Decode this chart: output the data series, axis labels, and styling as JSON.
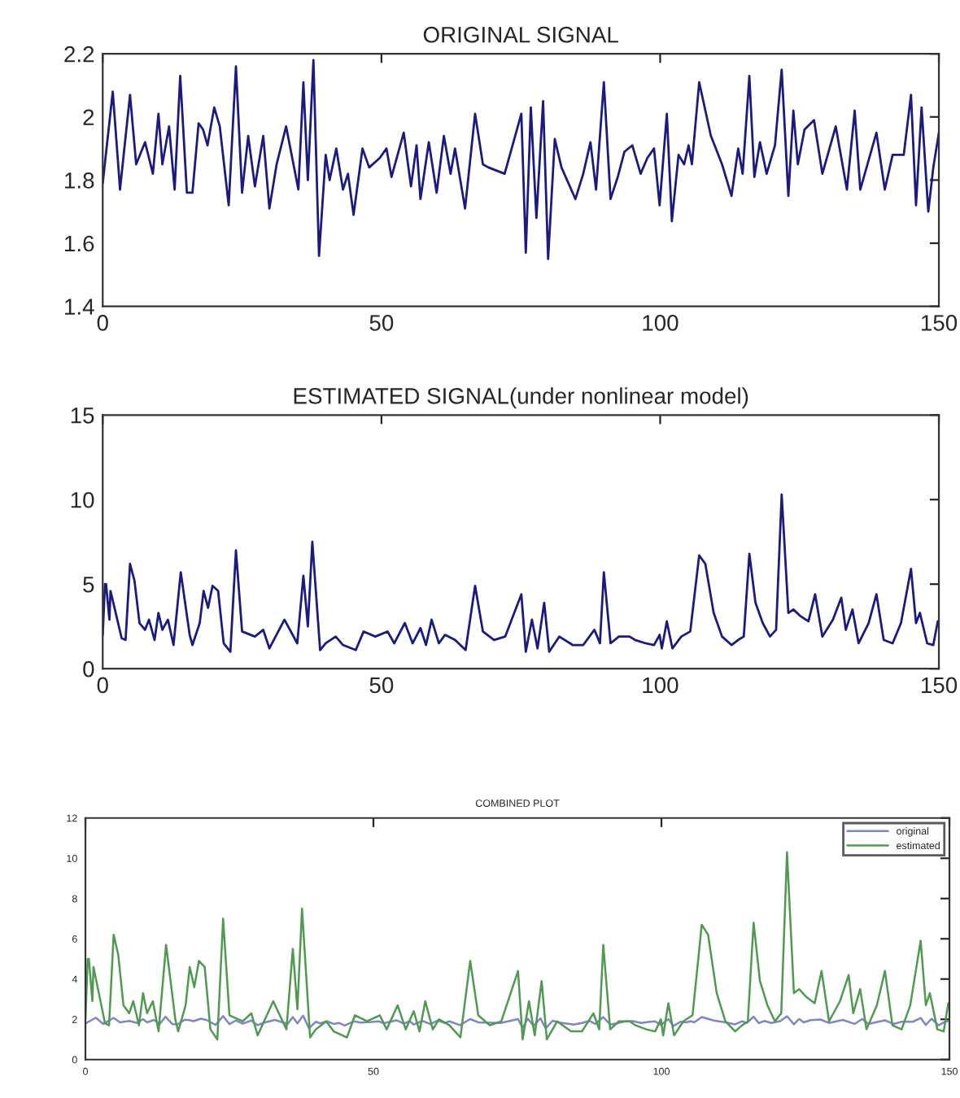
{
  "chart_data": [
    {
      "type": "line",
      "title": "ORIGINAL SIGNAL",
      "xlim": [
        0,
        150
      ],
      "xticks": [
        0,
        50,
        100,
        150
      ],
      "ylim": [
        1.4,
        2.2
      ],
      "yticks": [
        1.4,
        1.6,
        1.8,
        2,
        2.2
      ],
      "series": [
        {
          "color": "#1a1a80",
          "x": [
            0,
            1.8,
            2.9,
            3.1,
            4.9,
            6,
            7.6,
            9,
            10,
            10.7,
            11.9,
            12.9,
            13.9,
            15.1,
            16.1,
            17.2,
            18,
            18.8,
            20,
            21,
            22.6,
            23.9,
            25,
            26.1,
            27.3,
            28.8,
            29.9,
            31.2,
            32.9,
            35.1,
            36,
            36.8,
            37.8,
            38.8,
            40,
            40.7,
            41.9,
            43.1,
            44,
            45,
            46.6,
            47.8,
            49.7,
            50.9,
            51.8,
            54,
            55.3,
            56.3,
            57,
            58.5,
            59.9,
            61.2,
            62.4,
            63.2,
            65,
            66.8,
            68.2,
            69.2,
            72.1,
            75.1,
            75.9,
            76.8,
            77.8,
            79,
            79.9,
            81.1,
            82.3,
            84.8,
            86.2,
            87.5,
            88.5,
            89.9,
            91.1,
            92.4,
            93.6,
            95,
            96.5,
            97.7,
            98.9,
            99.9,
            101.2,
            102.1,
            103.3,
            104.3,
            105.1,
            105.7,
            107,
            109.1,
            111.1,
            112.8,
            114,
            114.8,
            116,
            116.9,
            117.9,
            119.1,
            120.6,
            121.8,
            123,
            123.9,
            124.7,
            125.9,
            127.6,
            129.1,
            131.5,
            133.5,
            134.9,
            135.9,
            138.8,
            140.3,
            141.7,
            143.7,
            145,
            145.9,
            146.9,
            148.1,
            149,
            150
          ],
          "values": [
            1.79,
            2.08,
            1.82,
            1.77,
            2.07,
            1.85,
            1.92,
            1.82,
            2.01,
            1.85,
            1.97,
            1.77,
            2.13,
            1.76,
            1.76,
            1.98,
            1.96,
            1.91,
            2.03,
            1.97,
            1.72,
            2.16,
            1.76,
            1.94,
            1.78,
            1.94,
            1.71,
            1.85,
            1.97,
            1.77,
            2.11,
            1.8,
            2.18,
            1.56,
            1.88,
            1.8,
            1.9,
            1.77,
            1.82,
            1.69,
            1.9,
            1.84,
            1.87,
            1.9,
            1.81,
            1.95,
            1.78,
            1.91,
            1.74,
            1.92,
            1.76,
            1.94,
            1.82,
            1.9,
            1.71,
            2.01,
            1.85,
            1.84,
            1.82,
            2.01,
            1.57,
            2.03,
            1.68,
            2.05,
            1.55,
            1.93,
            1.84,
            1.74,
            1.82,
            1.92,
            1.77,
            2.11,
            1.74,
            1.81,
            1.89,
            1.91,
            1.82,
            1.87,
            1.9,
            1.72,
            2.01,
            1.67,
            1.88,
            1.85,
            1.91,
            1.85,
            2.11,
            1.94,
            1.85,
            1.75,
            1.9,
            1.82,
            2.13,
            1.81,
            1.92,
            1.82,
            1.91,
            2.15,
            1.75,
            2.02,
            1.85,
            1.96,
            1.99,
            1.82,
            1.97,
            1.77,
            2.02,
            1.77,
            1.95,
            1.77,
            1.88,
            1.88,
            2.07,
            1.72,
            2.03,
            1.7,
            1.84,
            1.95
          ]
        }
      ]
    },
    {
      "type": "line",
      "title": "ESTIMATED SIGNAL(under nonlinear model)",
      "xlim": [
        0,
        150
      ],
      "xticks": [
        0,
        50,
        100,
        150
      ],
      "ylim": [
        0,
        15
      ],
      "yticks": [
        0,
        5,
        10,
        15
      ],
      "series": [
        {
          "color": "#1a1a80",
          "x": [
            0,
            0.4,
            0.6,
            1.2,
            1.4,
            3.4,
            4.1,
            4.9,
            5.7,
            6.6,
            7.6,
            8.3,
            9.3,
            10,
            10.7,
            11.7,
            12.7,
            14,
            15.6,
            16.1,
            17.4,
            18.1,
            18.9,
            19.7,
            20.7,
            21.7,
            22.9,
            23.9,
            25,
            27.3,
            28.8,
            29.9,
            32.6,
            34.9,
            36,
            36.8,
            37.6,
            39,
            40,
            41.8,
            43.1,
            45.4,
            46.8,
            48.9,
            51.1,
            52.3,
            54.2,
            55.6,
            57,
            58,
            59,
            60.3,
            61.4,
            63.2,
            65.1,
            66.8,
            68.2,
            70.2,
            72.2,
            75.1,
            75.9,
            77,
            78,
            79.2,
            80.1,
            81.9,
            84.3,
            86.2,
            88.2,
            89.2,
            89.9,
            91.1,
            92.6,
            94.5,
            95.5,
            97.4,
            98.9,
            99.9,
            100.3,
            101.2,
            102.2,
            103.8,
            105.4,
            107,
            108.1,
            109.6,
            111.1,
            112.8,
            114,
            115,
            116,
            117.1,
            118.4,
            119.7,
            120.8,
            121.8,
            123,
            123.9,
            125.2,
            126.6,
            127.8,
            129.1,
            131,
            132.5,
            133.3,
            134.5,
            135.6,
            137.4,
            138.8,
            140.1,
            141.7,
            143.2,
            145,
            145.9,
            146.6,
            147.9,
            149,
            149.8
          ],
          "values": [
            2.0,
            5.0,
            5.0,
            2.9,
            4.6,
            1.8,
            1.7,
            6.2,
            5.2,
            2.7,
            2.3,
            2.9,
            1.7,
            3.3,
            2.3,
            2.9,
            1.4,
            5.7,
            2.0,
            1.4,
            2.7,
            4.6,
            3.6,
            4.9,
            4.6,
            1.5,
            1.0,
            7.0,
            2.2,
            1.9,
            2.3,
            1.2,
            2.9,
            1.5,
            5.5,
            2.5,
            7.5,
            1.1,
            1.5,
            1.9,
            1.4,
            1.1,
            2.2,
            1.9,
            2.2,
            1.5,
            2.7,
            1.5,
            2.4,
            1.4,
            2.9,
            1.5,
            2.0,
            1.7,
            1.1,
            4.9,
            2.2,
            1.7,
            1.9,
            4.4,
            1.0,
            2.9,
            1.2,
            3.9,
            1.0,
            1.9,
            1.4,
            1.4,
            2.3,
            1.5,
            5.7,
            1.5,
            1.9,
            1.9,
            1.7,
            1.5,
            1.4,
            2.0,
            1.2,
            2.8,
            1.2,
            1.9,
            2.2,
            6.7,
            6.2,
            3.3,
            1.9,
            1.4,
            1.7,
            1.9,
            6.8,
            3.9,
            2.7,
            1.9,
            2.3,
            10.3,
            3.3,
            3.5,
            3.1,
            2.8,
            4.4,
            1.9,
            2.9,
            4.2,
            2.3,
            3.5,
            1.5,
            2.7,
            4.4,
            1.7,
            1.5,
            2.7,
            5.9,
            2.7,
            3.3,
            1.5,
            1.4,
            2.8
          ]
        }
      ]
    },
    {
      "type": "line",
      "title": "COMBINED PLOT",
      "xlim": [
        0,
        150
      ],
      "xticks": [
        0,
        50,
        100,
        150
      ],
      "ylim": [
        0,
        12
      ],
      "yticks": [
        0,
        2,
        4,
        6,
        8,
        10,
        12
      ],
      "legend": "top right",
      "series": [
        {
          "name": "original",
          "color": "#7f86c4",
          "x": [
            0,
            1.8,
            2.9,
            3.1,
            4.9,
            6,
            7.6,
            9,
            10,
            10.7,
            11.9,
            12.9,
            13.9,
            15.1,
            16.1,
            17.2,
            18,
            18.8,
            20,
            21,
            22.6,
            23.9,
            25,
            26.1,
            27.3,
            28.8,
            29.9,
            31.2,
            32.9,
            35.1,
            36,
            36.8,
            37.8,
            38.8,
            40,
            40.7,
            41.9,
            43.1,
            44,
            45,
            46.6,
            47.8,
            49.7,
            50.9,
            51.8,
            54,
            55.3,
            56.3,
            57,
            58.5,
            59.9,
            61.2,
            62.4,
            63.2,
            65,
            66.8,
            68.2,
            69.2,
            72.1,
            75.1,
            75.9,
            76.8,
            77.8,
            79,
            79.9,
            81.1,
            82.3,
            84.8,
            86.2,
            87.5,
            88.5,
            89.9,
            91.1,
            92.4,
            93.6,
            95,
            96.5,
            97.7,
            98.9,
            99.9,
            101.2,
            102.1,
            103.3,
            104.3,
            105.1,
            105.7,
            107,
            109.1,
            111.1,
            112.8,
            114,
            114.8,
            116,
            116.9,
            117.9,
            119.1,
            120.6,
            121.8,
            123,
            123.9,
            124.7,
            125.9,
            127.6,
            129.1,
            131.5,
            133.5,
            134.9,
            135.9,
            138.8,
            140.3,
            141.7,
            143.7,
            145,
            145.9,
            146.9,
            148.1,
            149,
            150
          ],
          "values": [
            1.79,
            2.08,
            1.82,
            1.77,
            2.07,
            1.85,
            1.92,
            1.82,
            2.01,
            1.85,
            1.97,
            1.77,
            2.13,
            1.76,
            1.76,
            1.98,
            1.96,
            1.91,
            2.03,
            1.97,
            1.72,
            2.16,
            1.76,
            1.94,
            1.78,
            1.94,
            1.71,
            1.85,
            1.97,
            1.77,
            2.11,
            1.8,
            2.18,
            1.56,
            1.88,
            1.8,
            1.9,
            1.77,
            1.82,
            1.69,
            1.9,
            1.84,
            1.87,
            1.9,
            1.81,
            1.95,
            1.78,
            1.91,
            1.74,
            1.92,
            1.76,
            1.94,
            1.82,
            1.9,
            1.71,
            2.01,
            1.85,
            1.84,
            1.82,
            2.01,
            1.57,
            2.03,
            1.68,
            2.05,
            1.55,
            1.93,
            1.84,
            1.74,
            1.82,
            1.92,
            1.77,
            2.11,
            1.74,
            1.81,
            1.89,
            1.91,
            1.82,
            1.87,
            1.9,
            1.72,
            2.01,
            1.67,
            1.88,
            1.85,
            1.91,
            1.85,
            2.11,
            1.94,
            1.85,
            1.75,
            1.9,
            1.82,
            2.13,
            1.81,
            1.92,
            1.82,
            1.91,
            2.15,
            1.75,
            2.02,
            1.85,
            1.96,
            1.99,
            1.82,
            1.97,
            1.77,
            2.02,
            1.77,
            1.95,
            1.77,
            1.88,
            1.88,
            2.07,
            1.72,
            2.03,
            1.7,
            1.84,
            1.95
          ]
        },
        {
          "name": "estimated",
          "color": "#4f9a4f",
          "x": [
            0,
            0.4,
            0.6,
            1.2,
            1.4,
            3.4,
            4.1,
            4.9,
            5.7,
            6.6,
            7.6,
            8.3,
            9.3,
            10,
            10.7,
            11.7,
            12.7,
            14,
            15.6,
            16.1,
            17.4,
            18.1,
            18.9,
            19.7,
            20.7,
            21.7,
            22.9,
            23.9,
            25,
            27.3,
            28.8,
            29.9,
            32.6,
            34.9,
            36,
            36.8,
            37.6,
            39,
            40,
            41.8,
            43.1,
            45.4,
            46.8,
            48.9,
            51.1,
            52.3,
            54.2,
            55.6,
            57,
            58,
            59,
            60.3,
            61.4,
            63.2,
            65.1,
            66.8,
            68.2,
            70.2,
            72.2,
            75.1,
            75.9,
            77,
            78,
            79.2,
            80.1,
            81.9,
            84.3,
            86.2,
            88.2,
            89.2,
            89.9,
            91.1,
            92.6,
            94.5,
            95.5,
            97.4,
            98.9,
            99.9,
            100.3,
            101.2,
            102.2,
            103.8,
            105.4,
            107,
            108.1,
            109.6,
            111.1,
            112.8,
            114,
            115,
            116,
            117.1,
            118.4,
            119.7,
            120.8,
            121.8,
            123,
            123.9,
            125.2,
            126.6,
            127.8,
            129.1,
            131,
            132.5,
            133.3,
            134.5,
            135.6,
            137.4,
            138.8,
            140.1,
            141.7,
            143.2,
            145,
            145.9,
            146.6,
            147.9,
            149,
            149.8
          ],
          "values": [
            2.0,
            5.0,
            5.0,
            2.9,
            4.6,
            1.8,
            1.7,
            6.2,
            5.2,
            2.7,
            2.3,
            2.9,
            1.7,
            3.3,
            2.3,
            2.9,
            1.4,
            5.7,
            2.0,
            1.4,
            2.7,
            4.6,
            3.6,
            4.9,
            4.6,
            1.5,
            1.0,
            7.0,
            2.2,
            1.9,
            2.3,
            1.2,
            2.9,
            1.5,
            5.5,
            2.5,
            7.5,
            1.1,
            1.5,
            1.9,
            1.4,
            1.1,
            2.2,
            1.9,
            2.2,
            1.5,
            2.7,
            1.5,
            2.4,
            1.4,
            2.9,
            1.5,
            2.0,
            1.7,
            1.1,
            4.9,
            2.2,
            1.7,
            1.9,
            4.4,
            1.0,
            2.9,
            1.2,
            3.9,
            1.0,
            1.9,
            1.4,
            1.4,
            2.3,
            1.5,
            5.7,
            1.5,
            1.9,
            1.9,
            1.7,
            1.5,
            1.4,
            2.0,
            1.2,
            2.8,
            1.2,
            1.9,
            2.2,
            6.7,
            6.2,
            3.3,
            1.9,
            1.4,
            1.7,
            1.9,
            6.8,
            3.9,
            2.7,
            1.9,
            2.3,
            10.3,
            3.3,
            3.5,
            3.1,
            2.8,
            4.4,
            1.9,
            2.9,
            4.2,
            2.3,
            3.5,
            1.5,
            2.7,
            4.4,
            1.7,
            1.5,
            2.7,
            5.9,
            2.7,
            3.3,
            1.5,
            1.4,
            2.8
          ]
        }
      ]
    }
  ]
}
